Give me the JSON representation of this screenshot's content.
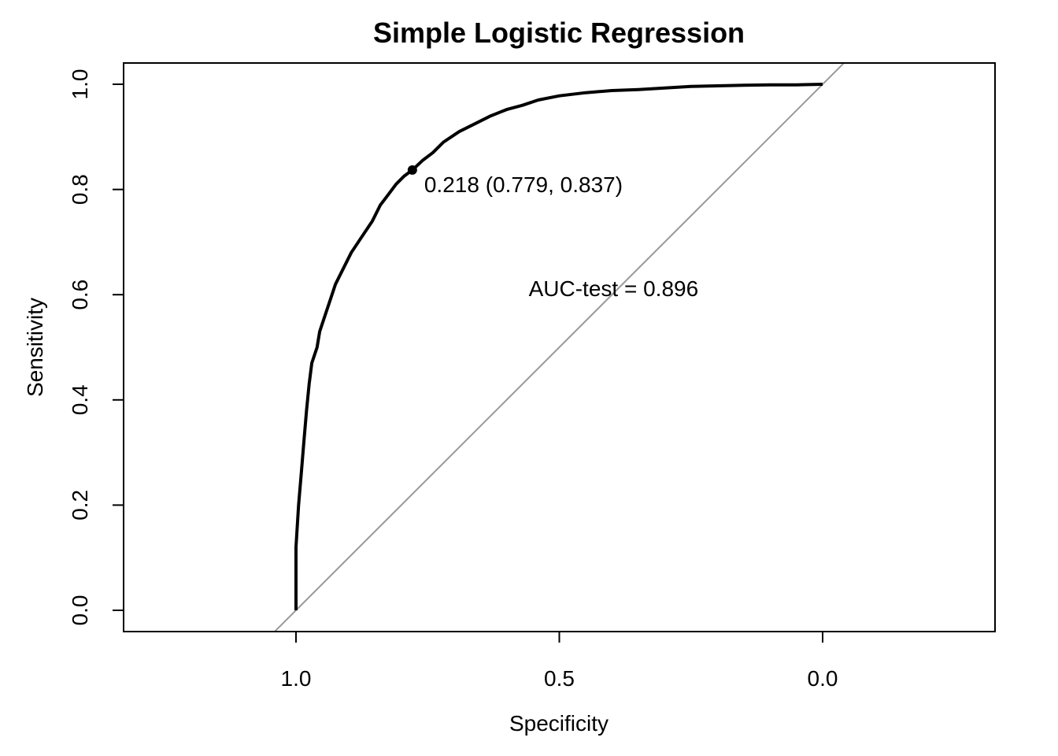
{
  "chart_data": {
    "type": "line",
    "title": "Simple Logistic Regression",
    "xlabel": "Specificity",
    "ylabel": "Sensitivity",
    "x_reversed": true,
    "xlim": [
      1.33,
      -0.33
    ],
    "ylim": [
      0.0,
      1.0
    ],
    "x_ticks": [
      1.0,
      0.5,
      0.0
    ],
    "x_tick_labels": [
      "1.0",
      "0.5",
      "0.0"
    ],
    "y_ticks": [
      0.0,
      0.2,
      0.4,
      0.6,
      0.8,
      1.0
    ],
    "y_tick_labels": [
      "0.0",
      "0.2",
      "0.4",
      "0.6",
      "0.8",
      "1.0"
    ],
    "grid": false,
    "series": [
      {
        "kind": "roc-curve",
        "color": "#000000",
        "points": [
          [
            1.0,
            0.0
          ],
          [
            1.0,
            0.12
          ],
          [
            0.995,
            0.2
          ],
          [
            0.99,
            0.26
          ],
          [
            0.985,
            0.32
          ],
          [
            0.98,
            0.38
          ],
          [
            0.975,
            0.43
          ],
          [
            0.97,
            0.47
          ],
          [
            0.96,
            0.5
          ],
          [
            0.955,
            0.53
          ],
          [
            0.945,
            0.56
          ],
          [
            0.935,
            0.59
          ],
          [
            0.925,
            0.62
          ],
          [
            0.91,
            0.65
          ],
          [
            0.895,
            0.68
          ],
          [
            0.875,
            0.71
          ],
          [
            0.855,
            0.74
          ],
          [
            0.84,
            0.77
          ],
          [
            0.825,
            0.79
          ],
          [
            0.81,
            0.81
          ],
          [
            0.795,
            0.825
          ],
          [
            0.779,
            0.837
          ],
          [
            0.76,
            0.855
          ],
          [
            0.74,
            0.87
          ],
          [
            0.72,
            0.89
          ],
          [
            0.69,
            0.91
          ],
          [
            0.66,
            0.925
          ],
          [
            0.63,
            0.94
          ],
          [
            0.6,
            0.952
          ],
          [
            0.57,
            0.96
          ],
          [
            0.54,
            0.97
          ],
          [
            0.5,
            0.978
          ],
          [
            0.45,
            0.984
          ],
          [
            0.4,
            0.988
          ],
          [
            0.35,
            0.99
          ],
          [
            0.3,
            0.993
          ],
          [
            0.25,
            0.996
          ],
          [
            0.2,
            0.997
          ],
          [
            0.15,
            0.998
          ],
          [
            0.1,
            0.999
          ],
          [
            0.05,
            0.999
          ],
          [
            0.0,
            1.0
          ]
        ]
      },
      {
        "kind": "diagonal",
        "color": "#999999",
        "points": [
          [
            1.04,
            -0.04
          ],
          [
            -0.04,
            1.04
          ]
        ]
      }
    ],
    "highlight_point": {
      "x": 0.779,
      "y": 0.837,
      "label": "0.218 (0.779, 0.837)"
    },
    "annotations": [
      {
        "text": "AUC-test = 0.896",
        "x": 0.4,
        "y": 0.6
      }
    ]
  }
}
